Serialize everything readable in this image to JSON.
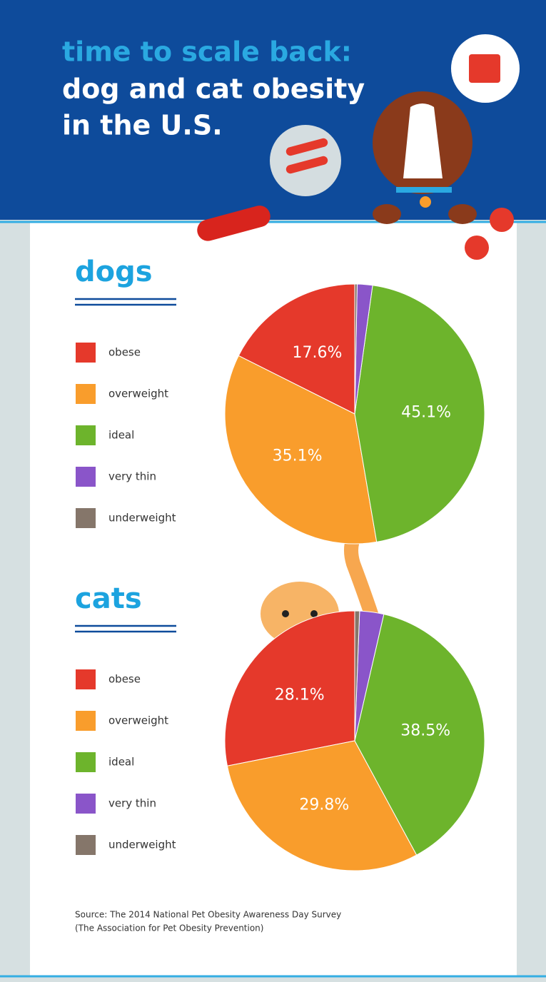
{
  "header": {
    "title_lines": [
      "time to scale back:",
      "dog and cat obesity",
      "in the U.S."
    ]
  },
  "chart_data": [
    {
      "type": "pie",
      "title": "dogs",
      "categories": [
        "obese",
        "overweight",
        "ideal",
        "very thin",
        "underweight"
      ],
      "values": [
        17.6,
        35.1,
        45.1,
        1.9,
        0.3
      ],
      "value_labels": [
        "17.6%",
        "35.1%",
        "45.1%",
        null,
        null
      ],
      "colors": [
        "#e5392b",
        "#f99d2c",
        "#6db42c",
        "#8a55c9",
        "#85766a"
      ]
    },
    {
      "type": "pie",
      "title": "cats",
      "categories": [
        "obese",
        "overweight",
        "ideal",
        "very thin",
        "underweight"
      ],
      "values": [
        28.1,
        29.8,
        38.5,
        3.0,
        0.6
      ],
      "value_labels": [
        "28.1%",
        "29.8%",
        "38.5%",
        null,
        null
      ],
      "colors": [
        "#e5392b",
        "#f99d2c",
        "#6db42c",
        "#8a55c9",
        "#85766a"
      ]
    }
  ],
  "source": {
    "lines": [
      "Source: The 2014 National Pet Obesity Awareness Day Survey",
      "(The Association for Pet Obesity Prevention)"
    ]
  }
}
